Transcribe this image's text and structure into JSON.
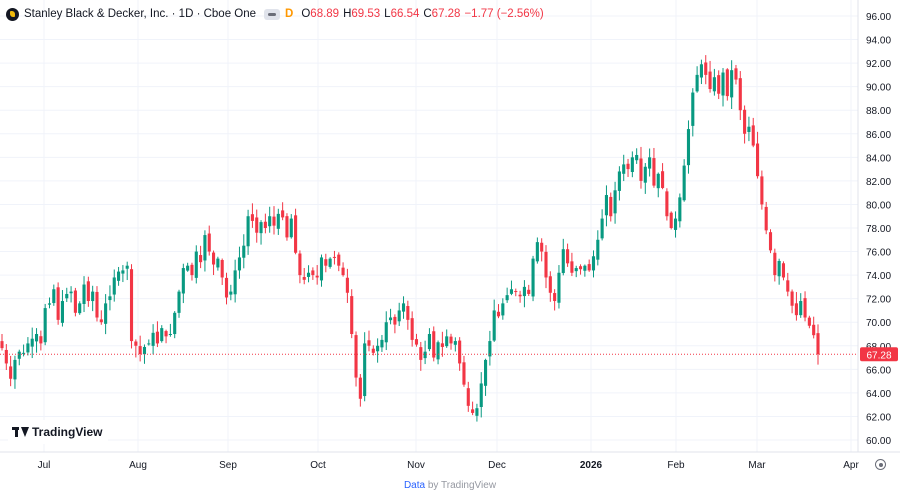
{
  "header": {
    "symbol_title": "Stanley Black & Decker, Inc. · 1D · Cboe One",
    "delay_marker": "D",
    "o_label": "O",
    "o_value": "68.89",
    "h_label": "H",
    "h_value": "69.53",
    "l_label": "L",
    "l_value": "66.54",
    "c_label": "C",
    "c_value": "67.28",
    "change": "−1.77 (−2.56%)"
  },
  "branding": {
    "logo_text": "TradingView",
    "footer_link": "Data",
    "footer_rest": " by TradingView"
  },
  "colors": {
    "up": "#089981",
    "down": "#f23645",
    "grid": "#f0f3fa",
    "axis_text": "#131722",
    "last_price_label_bg": "#f23645"
  },
  "icons": [
    "symbol-logo-icon",
    "visibility-icon",
    "tradingview-logo-icon",
    "settings-gear-icon"
  ],
  "chart_data": {
    "type": "candlestick",
    "ylim": [
      60,
      96
    ],
    "y_ticks": [
      "96.00",
      "94.00",
      "92.00",
      "90.00",
      "88.00",
      "86.00",
      "84.00",
      "82.00",
      "80.00",
      "78.00",
      "76.00",
      "74.00",
      "72.00",
      "70.00",
      "68.00",
      "66.00",
      "64.00",
      "62.00",
      "60.00"
    ],
    "x_ticks": [
      "Jul",
      "Aug",
      "Sep",
      "Oct",
      "Nov",
      "Dec",
      "2026",
      "Feb",
      "Mar",
      "Apr"
    ],
    "x_tick_bold": "2026",
    "last_price": 67.28,
    "last_price_label": "67.28",
    "grid": true,
    "series_closes": [
      67.8,
      66.5,
      65.2,
      66.8,
      67.5,
      67.4,
      68.2,
      68.6,
      69.0,
      68.2,
      71.2,
      71.6,
      72.8,
      70.2,
      71.8,
      72.4,
      72.6,
      70.8,
      71.6,
      73.2,
      71.8,
      72.6,
      70.4,
      70.0,
      71.6,
      72.2,
      73.8,
      74.3,
      74.4,
      74.8,
      68.4,
      68.0,
      67.3,
      67.9,
      68.2,
      69.1,
      68.2,
      69.5,
      68.8,
      69.0,
      70.8,
      72.6,
      74.6,
      74.8,
      74.0,
      76.0,
      75.1,
      77.4,
      76.0,
      74.9,
      75.4,
      73.8,
      72.1,
      72.6,
      74.4,
      75.5,
      76.5,
      79.0,
      78.6,
      77.6,
      78.5,
      78.0,
      79.0,
      78.2,
      79.2,
      78.9,
      77.2,
      78.8,
      75.9,
      74.0,
      73.6,
      74.2,
      74.0,
      73.8,
      75.5,
      74.8,
      75.4,
      75.5,
      74.8,
      74.0,
      72.5,
      69.0,
      65.3,
      63.5,
      68.2,
      68.0,
      67.4,
      68.0,
      68.5,
      70.0,
      70.4,
      69.8,
      71.0,
      71.6,
      70.2,
      68.5,
      68.1,
      66.8,
      67.5,
      69.0,
      67.0,
      68.3,
      67.9,
      68.8,
      68.2,
      68.4,
      66.5,
      64.7,
      62.9,
      62.3,
      62.7,
      64.8,
      66.8,
      68.4,
      71.0,
      70.5,
      71.6,
      72.3,
      72.8,
      72.6,
      72.2,
      73.0,
      72.4,
      75.4,
      76.8,
      76.0,
      73.8,
      72.5,
      71.8,
      74.2,
      76.2,
      75.0,
      74.2,
      74.6,
      74.5,
      74.8,
      74.4,
      75.6,
      77.0,
      78.8,
      80.8,
      79.0,
      81.2,
      82.8,
      83.4,
      83.0,
      84.0,
      84.2,
      82.0,
      83.2,
      84.0,
      81.6,
      82.6,
      81.4,
      79.0,
      78.0,
      78.8,
      80.6,
      83.3,
      86.4,
      89.5,
      91.0,
      91.9,
      91.0,
      89.8,
      90.8,
      89.4,
      91.2,
      89.2,
      91.4,
      90.6,
      88.0,
      86.0,
      86.6,
      85.0,
      82.4,
      80.0,
      77.8,
      76.1,
      74.0,
      75.2,
      73.8,
      72.6,
      71.4,
      70.6,
      71.8,
      70.4,
      69.7,
      68.9,
      67.28
    ],
    "summary": {
      "jul_start": 67.8,
      "sep_high": 79.8,
      "nov_low": 62.3,
      "feb_high": 93.4,
      "last": 67.28
    }
  }
}
